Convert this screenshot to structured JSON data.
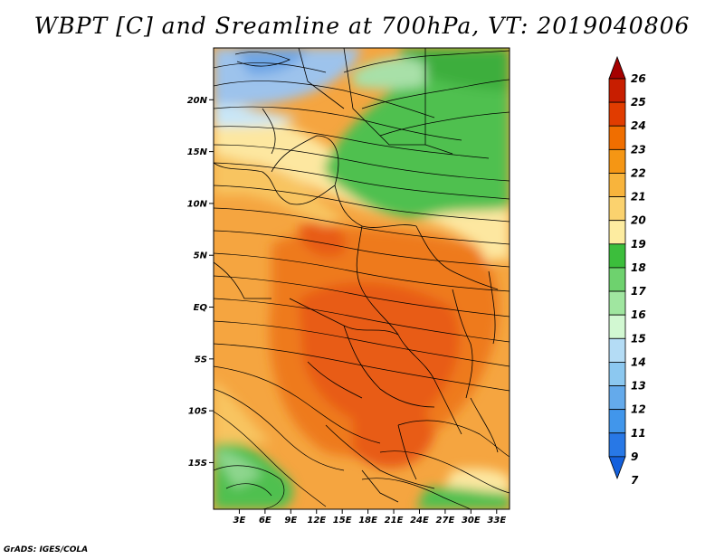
{
  "title": "WBPT [C] and Sreamline at 700hPa, VT: 2019040806",
  "credit": "GrADS: IGES/COLA",
  "map": {
    "lat_labels": [
      "20N",
      "15N",
      "10N",
      "5N",
      "EQ",
      "5S",
      "10S",
      "15S"
    ],
    "lon_labels": [
      "3E",
      "6E",
      "9E",
      "12E",
      "15E",
      "18E",
      "21E",
      "24E",
      "27E",
      "30E",
      "33E"
    ],
    "lat_range": [
      -19.5,
      25
    ],
    "lon_range": [
      0,
      34.5
    ]
  },
  "colorbar": {
    "labels": [
      "26",
      "25",
      "24",
      "23",
      "22",
      "21",
      "20",
      "19",
      "18",
      "17",
      "16",
      "15",
      "14",
      "13",
      "12",
      "11",
      "9",
      "7"
    ],
    "colors": [
      "#a50000",
      "#c81e00",
      "#e13c00",
      "#f06e00",
      "#f59614",
      "#f8b43c",
      "#fbd26e",
      "#fdeca0",
      "#3cbe3c",
      "#6ed26e",
      "#a0e6a0",
      "#d2f8d2",
      "#b4dcf5",
      "#8cc8f0",
      "#64aaeb",
      "#4196eb",
      "#2878e6",
      "#1460dc"
    ]
  },
  "colors": {
    "cool_blue": "#9dc3ec",
    "green": "#4fc04f",
    "light_yellow": "#fde7a0",
    "orange": "#f5a540",
    "deep_orange": "#ee7a1e",
    "hot": "#e85c14"
  }
}
